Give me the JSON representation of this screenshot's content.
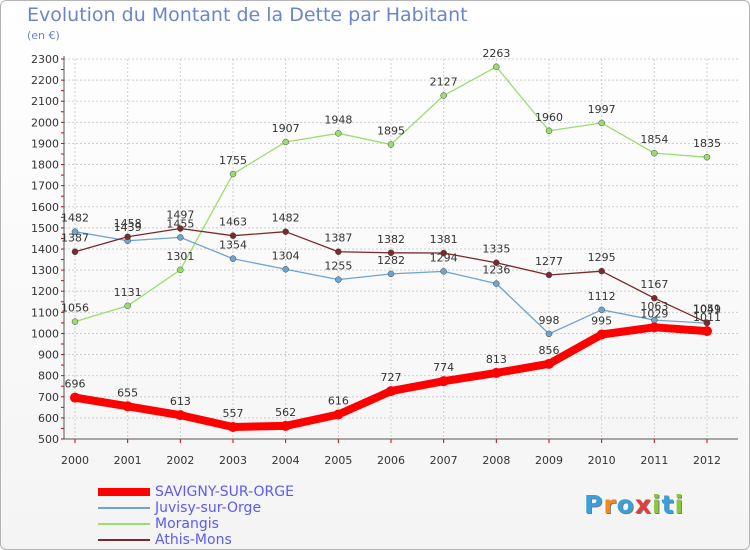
{
  "title": "Evolution du Montant de la Dette par Habitant",
  "subtitle": "(en €)",
  "logo_text": "Proxiti",
  "colors": {
    "title": "#6a86c8",
    "grid": "#cfcfcf",
    "axis": "#555555",
    "legend_text": "#5b5bf2"
  },
  "chart_data": {
    "type": "line",
    "title": "Evolution du Montant de la Dette par Habitant",
    "subtitle": "(en €)",
    "xlabel": "",
    "ylabel": "",
    "x": [
      "2000",
      "2001",
      "2002",
      "2003",
      "2004",
      "2005",
      "2006",
      "2007",
      "2008",
      "2009",
      "2010",
      "2011",
      "2012"
    ],
    "y_ticks": [
      500,
      600,
      700,
      800,
      900,
      1000,
      1100,
      1200,
      1300,
      1400,
      1500,
      1600,
      1700,
      1800,
      1900,
      2000,
      2100,
      2200,
      2300
    ],
    "ylim": [
      500,
      2300
    ],
    "grid": true,
    "legend_position": "bottom-left",
    "series": [
      {
        "name": "SAVIGNY-SUR-ORGE",
        "color": "#ff0000",
        "values": [
          696,
          655,
          613,
          557,
          562,
          616,
          727,
          774,
          813,
          856,
          995,
          1029,
          1011
        ]
      },
      {
        "name": "Juvisy-sur-Orge",
        "color": "#6ea4d0",
        "values": [
          1482,
          1439,
          1455,
          1354,
          1304,
          1255,
          1282,
          1294,
          1236,
          998,
          1112,
          1063,
          1049
        ]
      },
      {
        "name": "Morangis",
        "color": "#99dd6f",
        "values": [
          1056,
          1131,
          1301,
          1755,
          1907,
          1948,
          1895,
          2127,
          2263,
          1960,
          1997,
          1854,
          1835
        ]
      },
      {
        "name": "Athis-Mons",
        "color": "#7a2a2a",
        "values": [
          1387,
          1458,
          1497,
          1463,
          1482,
          1387,
          1382,
          1381,
          1335,
          1277,
          1295,
          1167,
          1051
        ]
      }
    ]
  }
}
